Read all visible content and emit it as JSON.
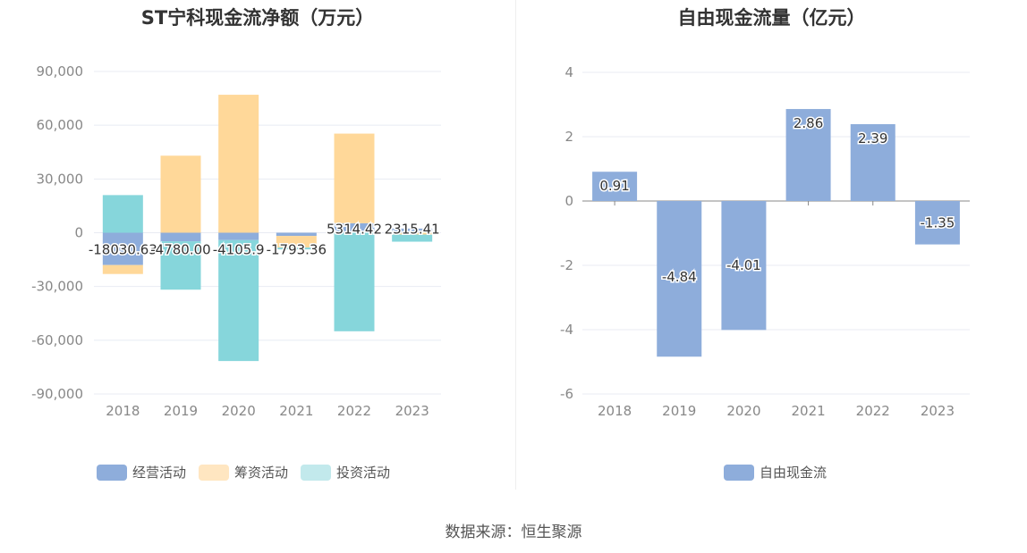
{
  "chart_data": [
    {
      "type": "bar",
      "title": "ST宁科现金流净额（万元）",
      "categories": [
        "2018",
        "2019",
        "2020",
        "2021",
        "2022",
        "2023"
      ],
      "ylim": [
        -90000,
        90000
      ],
      "yticks": [
        90000,
        60000,
        30000,
        0,
        -30000,
        -60000,
        -90000
      ],
      "ytick_labels": [
        "90,000",
        "60,000",
        "30,000",
        "0",
        "-30,000",
        "-60,000",
        "-90,000"
      ],
      "series": [
        {
          "name": "经营活动",
          "color": "#8eaddb",
          "values": [
            -18030.63,
            -4780.0,
            -4105.9,
            -1793.36,
            5314.42,
            2315.41
          ],
          "labels": [
            "-18030.63",
            "-4780.00",
            "-4105.9",
            "-1793.36",
            "5314.42",
            "2315.41"
          ]
        },
        {
          "name": "筹资活动",
          "color": "#ffd899",
          "values": [
            -5000,
            43000,
            77000,
            -6500,
            50000,
            -1000
          ]
        },
        {
          "name": "投资活动",
          "color": "#86d6db",
          "values": [
            21000,
            -27000,
            -67500,
            -1000,
            -55000,
            -4000
          ]
        }
      ],
      "legend_colors": [
        "#8eaddb",
        "#ffe6c1",
        "#c2e9ec"
      ]
    },
    {
      "type": "bar",
      "title": "自由现金流量（亿元）",
      "categories": [
        "2018",
        "2019",
        "2020",
        "2021",
        "2022",
        "2023"
      ],
      "ylim": [
        -6,
        4
      ],
      "yticks": [
        4,
        2,
        0,
        -2,
        -4,
        -6
      ],
      "ytick_labels": [
        "4",
        "2",
        "0",
        "-2",
        "-4",
        "-6"
      ],
      "series": [
        {
          "name": "自由现金流",
          "color": "#8eaddb",
          "values": [
            0.91,
            -4.84,
            -4.01,
            2.86,
            2.39,
            -1.35
          ],
          "labels": [
            "0.91",
            "-4.84",
            "-4.01",
            "2.86",
            "2.39",
            "-1.35"
          ]
        }
      ]
    }
  ],
  "source_text": "数据来源：恒生聚源"
}
